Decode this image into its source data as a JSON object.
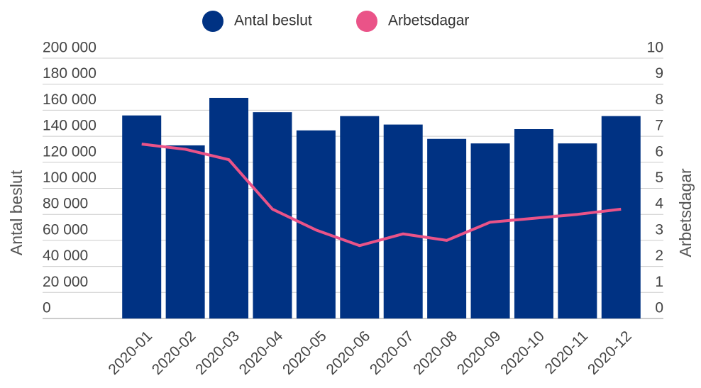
{
  "chart_data": {
    "type": "bar_line",
    "categories": [
      "2020-01",
      "2020-02",
      "2020-03",
      "2020-04",
      "2020-05",
      "2020-06",
      "2020-07",
      "2020-08",
      "2020-09",
      "2020-10",
      "2020-11",
      "2020-12"
    ],
    "series": [
      {
        "name": "Antal beslut",
        "color": "#003283",
        "type": "bar",
        "values": [
          156000,
          133000,
          169500,
          158500,
          144500,
          155500,
          149000,
          138000,
          134500,
          145500,
          134500,
          155500
        ]
      },
      {
        "name": "Arbetsdagar",
        "color": "#ea5388",
        "type": "line",
        "axis": "y2",
        "values": [
          6.7,
          6.5,
          6.1,
          4.2,
          3.4,
          2.8,
          3.25,
          3.0,
          3.7,
          3.85,
          4.0,
          4.2
        ]
      }
    ],
    "ylabel": "Antal beslut",
    "y2label": "Arbetsdagar",
    "ylim": [
      0,
      200000
    ],
    "yticks": [
      0,
      {
        "value": 20000,
        "label": "20 000"
      },
      {
        "value": 40000,
        "label": "40 000"
      },
      {
        "value": 60000,
        "label": "60 000"
      },
      {
        "value": 80000,
        "label": "80 000"
      },
      {
        "value": 100000,
        "label": "100 000"
      },
      {
        "value": 120000,
        "label": "120 000"
      },
      {
        "value": 140000,
        "label": "140 000"
      },
      {
        "value": 160000,
        "label": "160 000"
      },
      {
        "value": 180000,
        "label": "180 000"
      },
      {
        "value": 200000,
        "label": "200 000"
      }
    ],
    "y2lim": [
      0,
      10
    ],
    "y2ticks": [
      0,
      1,
      2,
      3,
      4,
      5,
      6,
      7,
      8,
      9,
      10
    ],
    "grid": true,
    "legend": "top"
  }
}
